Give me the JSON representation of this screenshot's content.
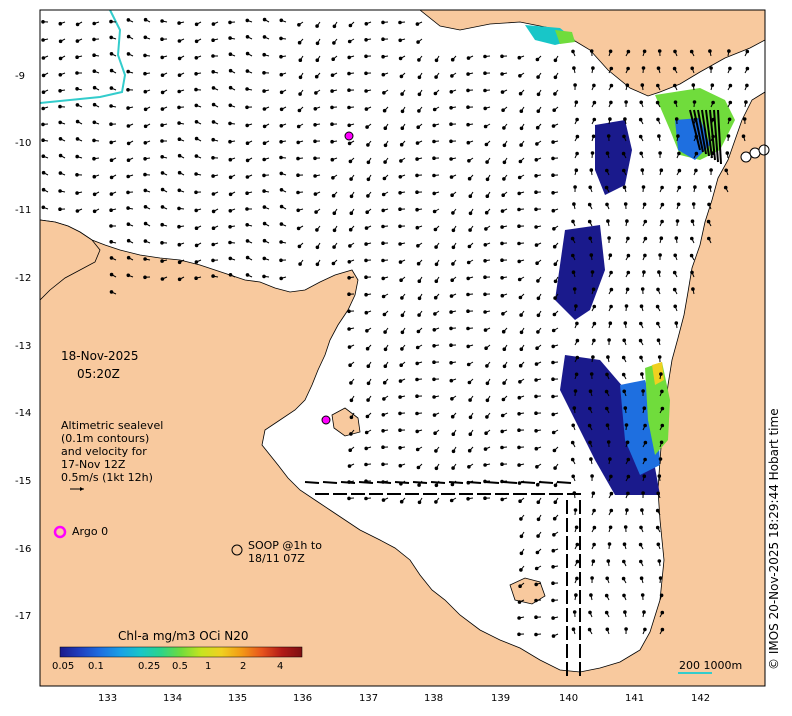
{
  "title_block": {
    "date": "18-Nov-2025",
    "time": "05:20Z"
  },
  "legend_sealevel": {
    "line1": "Altimetric sealevel",
    "line2": "(0.1m contours)",
    "line3": "and velocity for",
    "line4": "17-Nov 12Z",
    "line5": "0.5m/s (1kt 12h)"
  },
  "argo": {
    "label": "Argo 0",
    "color": "#ff00ff"
  },
  "soop": {
    "line1": "SOOP @1h to",
    "line2": "18/11 07Z"
  },
  "colorbar": {
    "title": "Chl-a mg/m3 OCi N20",
    "ticks": [
      "0.05",
      "0.1",
      "0.25",
      "0.5",
      "1",
      "2",
      "4"
    ],
    "colors": [
      "#1a1a8c",
      "#1f3fbf",
      "#1e6fe0",
      "#19a0e6",
      "#18c6c8",
      "#2bd48a",
      "#70dc3c",
      "#c6e41f",
      "#f0d020",
      "#f39a16",
      "#e8541c",
      "#b21a17",
      "#7d0f12"
    ]
  },
  "scale": {
    "label": "200  1000m"
  },
  "axes": {
    "x_ticks": [
      "133",
      "134",
      "135",
      "136",
      "137",
      "138",
      "139",
      "140",
      "141",
      "142"
    ],
    "y_ticks": [
      "-9",
      "-10",
      "-11",
      "-12",
      "-13",
      "-14",
      "-15",
      "-16",
      "-17"
    ]
  },
  "watermark": "© IMOS 20-Nov-2025 18:29:44 Hobart time",
  "colors": {
    "land": "#f8c99e",
    "sea": "#ffffff",
    "cable": "#33cccc"
  }
}
